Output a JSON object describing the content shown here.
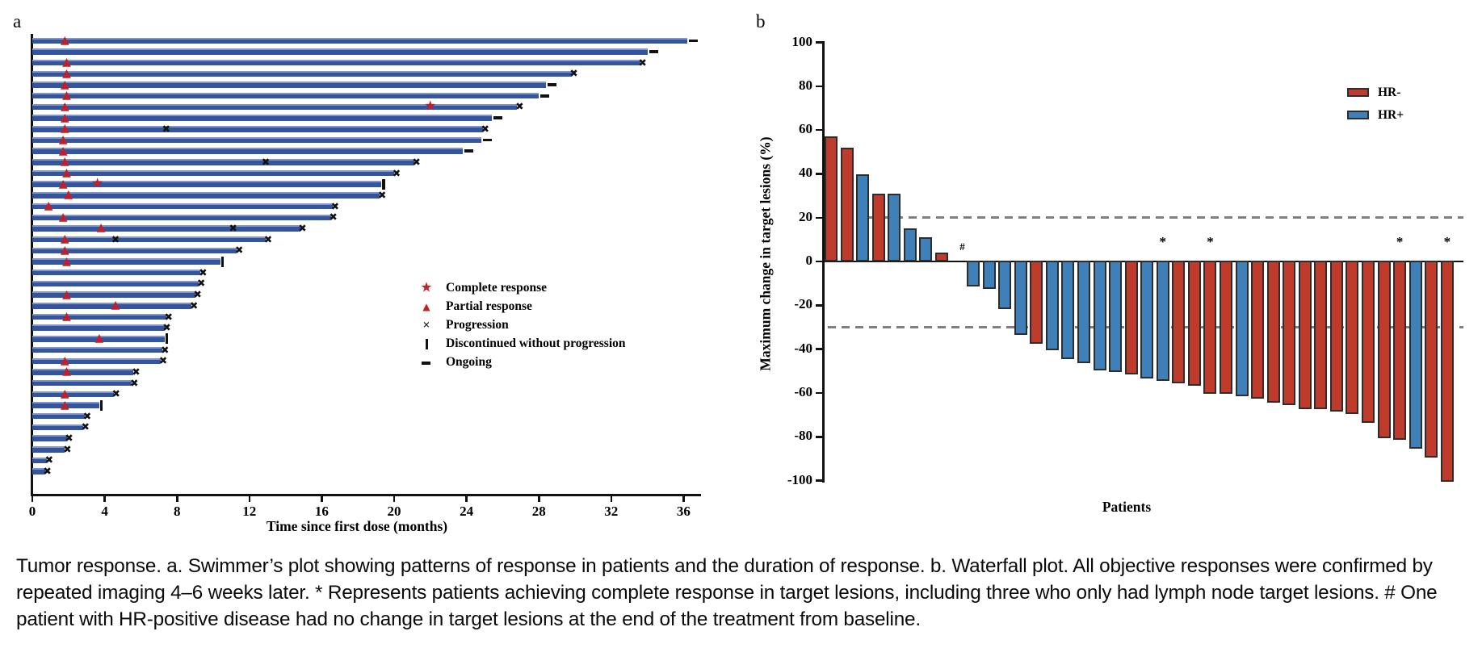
{
  "caption": {
    "text": "Tumor response. a. Swimmer’s plot showing patterns of response in patients and the duration of response. b. Waterfall plot. All objective responses were confirmed by repeated imaging 4–6 weeks later. * Represents patients achieving complete response in target lesions, including three who only had lymph node target lesions. # One patient with HR-positive disease had no change in target lesions at the end of the treatment from baseline."
  },
  "colors": {
    "swimmer_bar_blue": "#34549e",
    "marker_red": "#c22026",
    "hr_negative_red": "#bf3b2c",
    "hr_positive_blue": "#4080b8",
    "reference_dash_gray": "#808080",
    "axis_black": "#111111"
  },
  "chart_data": [
    {
      "type": "swimmer",
      "panel_label": "a",
      "xlabel": "Time since first dose (months)",
      "x_ticks": [
        0,
        4,
        8,
        12,
        16,
        20,
        24,
        28,
        32,
        36
      ],
      "xlim": [
        0,
        37
      ],
      "legend": [
        {
          "icon": "star",
          "label": "Complete response"
        },
        {
          "icon": "triangle",
          "label": "Partial response"
        },
        {
          "icon": "cross",
          "label": "Progression"
        },
        {
          "icon": "stopbar",
          "label": "Discontinued without progression"
        },
        {
          "icon": "dash",
          "label": "Ongoing"
        }
      ],
      "patients": [
        {
          "duration_months": 36.2,
          "end_event": "ongoing",
          "partial_response_month": 1.8
        },
        {
          "duration_months": 34.0,
          "end_event": "ongoing"
        },
        {
          "duration_months": 33.6,
          "end_event": "progression",
          "partial_response_month": 1.9
        },
        {
          "duration_months": 29.8,
          "end_event": "progression",
          "partial_response_month": 1.9
        },
        {
          "duration_months": 28.4,
          "end_event": "ongoing",
          "partial_response_month": 1.8
        },
        {
          "duration_months": 28.0,
          "end_event": "ongoing",
          "partial_response_month": 1.9
        },
        {
          "duration_months": 26.8,
          "end_event": "progression",
          "partial_response_month": 1.8,
          "complete_response_month": 22.0
        },
        {
          "duration_months": 25.4,
          "end_event": "ongoing",
          "partial_response_month": 1.8
        },
        {
          "duration_months": 24.9,
          "end_event": "progression",
          "partial_response_month": 1.8,
          "progression_months": [
            7.4
          ]
        },
        {
          "duration_months": 24.8,
          "end_event": "ongoing",
          "partial_response_month": 1.7
        },
        {
          "duration_months": 23.8,
          "end_event": "ongoing",
          "partial_response_month": 1.7
        },
        {
          "duration_months": 21.1,
          "end_event": "progression",
          "partial_response_month": 1.8,
          "progression_months": [
            12.9
          ]
        },
        {
          "duration_months": 20.0,
          "end_event": "progression",
          "partial_response_month": 1.9
        },
        {
          "duration_months": 19.3,
          "end_event": "discontinued",
          "partial_response_month": 1.7,
          "complete_response_month": 3.6
        },
        {
          "duration_months": 19.2,
          "end_event": "progression",
          "partial_response_month": 2.0
        },
        {
          "duration_months": 16.6,
          "end_event": "progression",
          "partial_response_month": 0.9
        },
        {
          "duration_months": 16.5,
          "end_event": "progression",
          "partial_response_month": 1.7
        },
        {
          "duration_months": 14.8,
          "end_event": "progression",
          "partial_response_month": 3.8,
          "progression_months": [
            11.1
          ]
        },
        {
          "duration_months": 12.9,
          "end_event": "progression",
          "partial_response_month": 1.8,
          "progression_months": [
            4.6
          ]
        },
        {
          "duration_months": 11.3,
          "end_event": "progression",
          "partial_response_month": 1.8
        },
        {
          "duration_months": 10.4,
          "end_event": "discontinued",
          "partial_response_month": 1.9
        },
        {
          "duration_months": 9.3,
          "end_event": "progression"
        },
        {
          "duration_months": 9.2,
          "end_event": "progression"
        },
        {
          "duration_months": 9.0,
          "end_event": "progression",
          "partial_response_month": 1.9
        },
        {
          "duration_months": 8.8,
          "end_event": "progression",
          "partial_response_month": 4.6
        },
        {
          "duration_months": 7.4,
          "end_event": "progression",
          "partial_response_month": 1.9
        },
        {
          "duration_months": 7.3,
          "end_event": "progression"
        },
        {
          "duration_months": 7.3,
          "end_event": "discontinued",
          "partial_response_month": 3.7
        },
        {
          "duration_months": 7.2,
          "end_event": "progression"
        },
        {
          "duration_months": 7.1,
          "end_event": "progression",
          "partial_response_month": 1.8
        },
        {
          "duration_months": 5.6,
          "end_event": "progression",
          "partial_response_month": 1.9
        },
        {
          "duration_months": 5.5,
          "end_event": "progression"
        },
        {
          "duration_months": 4.5,
          "end_event": "progression",
          "partial_response_month": 1.8
        },
        {
          "duration_months": 3.7,
          "end_event": "discontinued",
          "partial_response_month": 1.8
        },
        {
          "duration_months": 2.9,
          "end_event": "progression"
        },
        {
          "duration_months": 2.8,
          "end_event": "progression"
        },
        {
          "duration_months": 1.9,
          "end_event": "progression"
        },
        {
          "duration_months": 1.8,
          "end_event": "progression"
        },
        {
          "duration_months": 0.8,
          "end_event": "progression"
        },
        {
          "duration_months": 0.7,
          "end_event": "progression"
        }
      ]
    },
    {
      "type": "waterfall",
      "panel_label": "b",
      "ylabel": "Maximum change in target lesions (%)",
      "xlabel": "Patients",
      "ylim": [
        -100,
        100
      ],
      "y_ticks": [
        100,
        80,
        60,
        40,
        20,
        0,
        -20,
        -40,
        -60,
        -80,
        -100
      ],
      "reference_lines": [
        20,
        -30
      ],
      "legend": [
        {
          "label": "HR-",
          "color_key": "red"
        },
        {
          "label": "HR+",
          "color_key": "blue"
        }
      ],
      "patients": [
        {
          "value": 56,
          "group": "HR-"
        },
        {
          "value": 51,
          "group": "HR-"
        },
        {
          "value": 39,
          "group": "HR+"
        },
        {
          "value": 30,
          "group": "HR-"
        },
        {
          "value": 30,
          "group": "HR+"
        },
        {
          "value": 14,
          "group": "HR+"
        },
        {
          "value": 10,
          "group": "HR+"
        },
        {
          "value": 3,
          "group": "HR-"
        },
        {
          "value": 0,
          "group": "HR+",
          "mark": "#"
        },
        {
          "value": -11,
          "group": "HR+"
        },
        {
          "value": -12,
          "group": "HR+"
        },
        {
          "value": -21,
          "group": "HR+"
        },
        {
          "value": -33,
          "group": "HR+"
        },
        {
          "value": -37,
          "group": "HR-"
        },
        {
          "value": -40,
          "group": "HR+"
        },
        {
          "value": -44,
          "group": "HR+"
        },
        {
          "value": -46,
          "group": "HR+"
        },
        {
          "value": -49,
          "group": "HR+"
        },
        {
          "value": -50,
          "group": "HR+"
        },
        {
          "value": -51,
          "group": "HR-"
        },
        {
          "value": -53,
          "group": "HR+"
        },
        {
          "value": -54,
          "group": "HR+",
          "mark": "*"
        },
        {
          "value": -55,
          "group": "HR-"
        },
        {
          "value": -56,
          "group": "HR-"
        },
        {
          "value": -60,
          "group": "HR-",
          "mark": "*"
        },
        {
          "value": -60,
          "group": "HR-"
        },
        {
          "value": -61,
          "group": "HR+"
        },
        {
          "value": -62,
          "group": "HR-"
        },
        {
          "value": -64,
          "group": "HR-"
        },
        {
          "value": -65,
          "group": "HR-"
        },
        {
          "value": -67,
          "group": "HR-"
        },
        {
          "value": -67,
          "group": "HR-"
        },
        {
          "value": -68,
          "group": "HR-"
        },
        {
          "value": -69,
          "group": "HR-"
        },
        {
          "value": -73,
          "group": "HR-"
        },
        {
          "value": -80,
          "group": "HR-"
        },
        {
          "value": -81,
          "group": "HR-",
          "mark": "*"
        },
        {
          "value": -85,
          "group": "HR+"
        },
        {
          "value": -89,
          "group": "HR-"
        },
        {
          "value": -100,
          "group": "HR-",
          "mark": "*"
        }
      ]
    }
  ]
}
